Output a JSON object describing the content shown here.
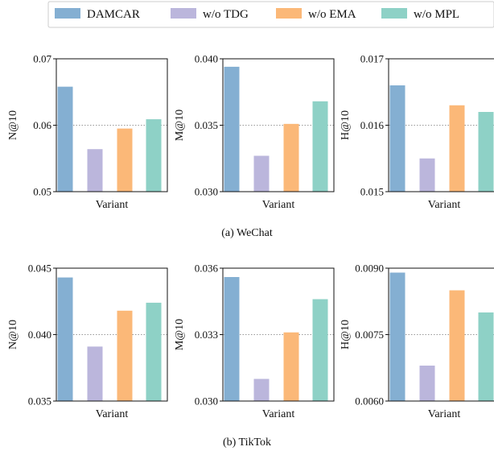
{
  "legend": [
    {
      "name": "DAMCAR",
      "color": "#84afd2"
    },
    {
      "name": "w/o TDG",
      "color": "#bbb6dc"
    },
    {
      "name": "w/o EMA",
      "color": "#fbb878"
    },
    {
      "name": "w/o MPL",
      "color": "#8ed1c6"
    }
  ],
  "captions": [
    "(a)  WeChat",
    "(b)  TikTok"
  ],
  "chart_data": [
    {
      "type": "bar",
      "group": "WeChat",
      "categories": [
        "DAMCAR",
        "w/o TDG",
        "w/o EMA",
        "w/o MPL"
      ],
      "values": [
        0.0658,
        0.0564,
        0.0595,
        0.0609
      ],
      "xlabel": "Variant",
      "ylabel": "N@10",
      "ylim": [
        0.05,
        0.07
      ],
      "yticks": [
        "0.05",
        "0.06",
        "0.07"
      ],
      "midline": 0.06
    },
    {
      "type": "bar",
      "group": "WeChat",
      "categories": [
        "DAMCAR",
        "w/o TDG",
        "w/o EMA",
        "w/o MPL"
      ],
      "values": [
        0.0394,
        0.0327,
        0.0351,
        0.0368
      ],
      "xlabel": "Variant",
      "ylabel": "M@10",
      "ylim": [
        0.03,
        0.04
      ],
      "yticks": [
        "0.030",
        "0.035",
        "0.040"
      ],
      "midline": 0.035
    },
    {
      "type": "bar",
      "group": "WeChat",
      "categories": [
        "DAMCAR",
        "w/o TDG",
        "w/o EMA",
        "w/o MPL"
      ],
      "values": [
        0.0166,
        0.0155,
        0.0163,
        0.0162
      ],
      "xlabel": "Variant",
      "ylabel": "H@10",
      "ylim": [
        0.015,
        0.017
      ],
      "yticks": [
        "0.015",
        "0.016",
        "0.017"
      ],
      "midline": 0.016
    },
    {
      "type": "bar",
      "group": "TikTok",
      "categories": [
        "DAMCAR",
        "w/o TDG",
        "w/o EMA",
        "w/o MPL"
      ],
      "values": [
        0.0443,
        0.0391,
        0.0418,
        0.0424
      ],
      "xlabel": "Variant",
      "ylabel": "N@10",
      "ylim": [
        0.035,
        0.045
      ],
      "yticks": [
        "0.035",
        "0.040",
        "0.045"
      ],
      "midline": 0.04
    },
    {
      "type": "bar",
      "group": "TikTok",
      "categories": [
        "DAMCAR",
        "w/o TDG",
        "w/o EMA",
        "w/o MPL"
      ],
      "values": [
        0.0356,
        0.031,
        0.0331,
        0.0346
      ],
      "xlabel": "Variant",
      "ylabel": "M@10",
      "ylim": [
        0.03,
        0.036
      ],
      "yticks": [
        "0.030",
        "0.033",
        "0.036"
      ],
      "midline": 0.033
    },
    {
      "type": "bar",
      "group": "TikTok",
      "categories": [
        "DAMCAR",
        "w/o TDG",
        "w/o EMA",
        "w/o MPL"
      ],
      "values": [
        0.0089,
        0.0068,
        0.0085,
        0.008
      ],
      "xlabel": "Variant",
      "ylabel": "H@10",
      "ylim": [
        0.006,
        0.009
      ],
      "yticks": [
        "0.0060",
        "0.0075",
        "0.0090"
      ],
      "midline": 0.0075
    }
  ]
}
